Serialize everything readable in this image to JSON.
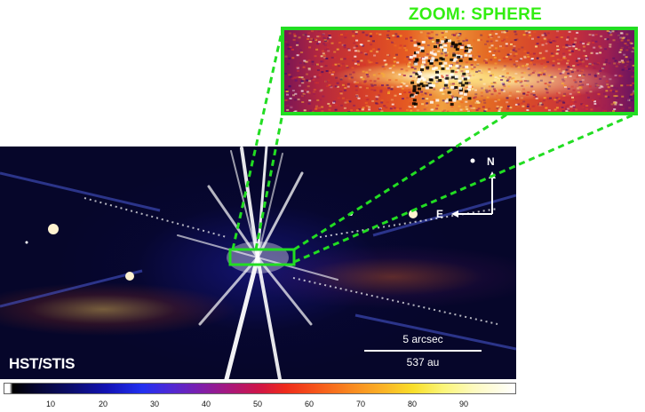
{
  "zoom": {
    "title": "ZOOM: SPHERE"
  },
  "main": {
    "instrument_label": "HST/STIS",
    "scale_bar": {
      "angular_label": "5 arcsec",
      "physical_label": "537 au"
    },
    "compass": {
      "north_label": "N",
      "east_label": "E"
    }
  },
  "colorbar": {
    "ticks": [
      "10",
      "20",
      "30",
      "40",
      "50",
      "60",
      "70",
      "80",
      "90"
    ]
  },
  "colors": {
    "zoom_frame": "#22dd22",
    "zoom_title": "#33ee11",
    "background": "#06062a"
  }
}
